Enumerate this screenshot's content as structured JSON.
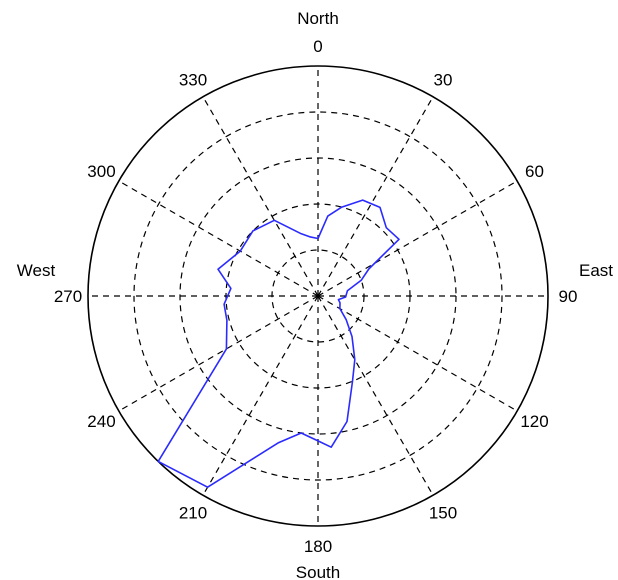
{
  "chart_data": {
    "type": "polar-line",
    "theta_direction": "clockwise",
    "theta_zero_location": "top",
    "rlim": [
      0,
      1
    ],
    "r_ring_values": [
      0.2,
      0.4,
      0.6,
      0.8
    ],
    "grid": true,
    "angle_ticks": [
      {
        "angle": 0,
        "label": "0"
      },
      {
        "angle": 30,
        "label": "30"
      },
      {
        "angle": 60,
        "label": "60"
      },
      {
        "angle": 90,
        "label": "90"
      },
      {
        "angle": 120,
        "label": "120"
      },
      {
        "angle": 150,
        "label": "150"
      },
      {
        "angle": 180,
        "label": "180"
      },
      {
        "angle": 210,
        "label": "210"
      },
      {
        "angle": 240,
        "label": "240"
      },
      {
        "angle": 270,
        "label": "270"
      },
      {
        "angle": 300,
        "label": "300"
      },
      {
        "angle": 330,
        "label": "330"
      }
    ],
    "direction_labels": {
      "north": "North",
      "east": "East",
      "south": "South",
      "west": "West"
    },
    "series": [
      {
        "color": "#2b2bff",
        "points": [
          {
            "theta": 0,
            "r": 0.25
          },
          {
            "theta": 7,
            "r": 0.35
          },
          {
            "theta": 15,
            "r": 0.4
          },
          {
            "theta": 25,
            "r": 0.46
          },
          {
            "theta": 35,
            "r": 0.47
          },
          {
            "theta": 45,
            "r": 0.42
          },
          {
            "theta": 55,
            "r": 0.43
          },
          {
            "theta": 62,
            "r": 0.25
          },
          {
            "theta": 70,
            "r": 0.2
          },
          {
            "theta": 80,
            "r": 0.13
          },
          {
            "theta": 92,
            "r": 0.12
          },
          {
            "theta": 100,
            "r": 0.09
          },
          {
            "theta": 107,
            "r": 0.1
          },
          {
            "theta": 120,
            "r": 0.11
          },
          {
            "theta": 130,
            "r": 0.16
          },
          {
            "theta": 140,
            "r": 0.23
          },
          {
            "theta": 150,
            "r": 0.32
          },
          {
            "theta": 158,
            "r": 0.4
          },
          {
            "theta": 167,
            "r": 0.56
          },
          {
            "theta": 175,
            "r": 0.66
          },
          {
            "theta": 180,
            "r": 0.63
          },
          {
            "theta": 187,
            "r": 0.6
          },
          {
            "theta": 195,
            "r": 0.66
          },
          {
            "theta": 210,
            "r": 0.96
          },
          {
            "theta": 224,
            "r": 1.0
          },
          {
            "theta": 240,
            "r": 0.46
          },
          {
            "theta": 255,
            "r": 0.41
          },
          {
            "theta": 265,
            "r": 0.41
          },
          {
            "theta": 275,
            "r": 0.38
          },
          {
            "theta": 285,
            "r": 0.45
          },
          {
            "theta": 300,
            "r": 0.39
          },
          {
            "theta": 315,
            "r": 0.4
          },
          {
            "theta": 330,
            "r": 0.38
          },
          {
            "theta": 345,
            "r": 0.28
          },
          {
            "theta": 352,
            "r": 0.26
          },
          {
            "theta": 360,
            "r": 0.25
          }
        ]
      }
    ]
  }
}
